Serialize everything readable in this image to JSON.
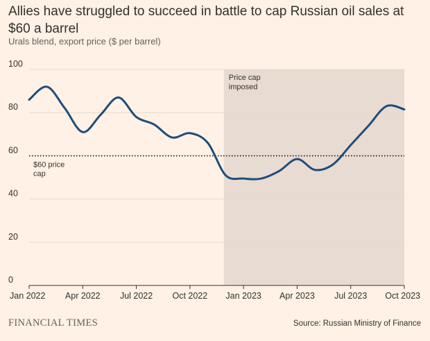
{
  "header": {
    "title": "Allies have struggled to succeed in battle to cap Russian oil sales at $60 a barrel",
    "subtitle": "Urals blend, export price ($ per barrel)"
  },
  "footer": {
    "brand": "FINANCIAL TIMES",
    "source": "Source: Russian Ministry of Finance"
  },
  "colors": {
    "background": "#fff1e5",
    "line": "#1e4d7b",
    "shade": "#e8dbd1",
    "grid": "#e6d9ce",
    "text": "#33302e"
  },
  "chart_data": {
    "type": "line",
    "title": "Allies have struggled to succeed in battle to cap Russian oil sales at $60 a barrel",
    "subtitle": "Urals blend, export price ($ per barrel)",
    "xlabel": "",
    "ylabel": "",
    "x_domain": [
      0,
      21
    ],
    "ylim": [
      0,
      100
    ],
    "y_ticks": [
      0,
      20,
      40,
      60,
      80,
      100
    ],
    "x_ticks": [
      {
        "x": 0,
        "label": "Jan 2022"
      },
      {
        "x": 3,
        "label": "Apr 2022"
      },
      {
        "x": 6,
        "label": "Jul 2022"
      },
      {
        "x": 9,
        "label": "Oct 2022"
      },
      {
        "x": 12,
        "label": "Jan 2023"
      },
      {
        "x": 15,
        "label": "Apr 2023"
      },
      {
        "x": 18,
        "label": "Jul 2023"
      },
      {
        "x": 21,
        "label": "Oct 2023"
      }
    ],
    "series": [
      {
        "name": "Urals blend export price",
        "x": [
          0,
          1,
          2,
          3,
          4,
          5,
          6,
          7,
          8,
          9,
          10,
          11,
          12,
          13,
          14,
          15,
          16,
          17,
          18,
          19,
          20,
          21
        ],
        "values": [
          86,
          92,
          82,
          71,
          79,
          87,
          78,
          74.5,
          68.5,
          70.5,
          66,
          51,
          49.5,
          49.5,
          53,
          58.5,
          53.5,
          56,
          65,
          74,
          83,
          81.5
        ]
      }
    ],
    "reference_line": {
      "value": 60,
      "label": "$60 price cap",
      "style": "dotted"
    },
    "shaded_region": {
      "x_start": 10.9,
      "x_end": 21,
      "label": "Price cap imposed"
    },
    "grid": true,
    "legend": "none"
  }
}
